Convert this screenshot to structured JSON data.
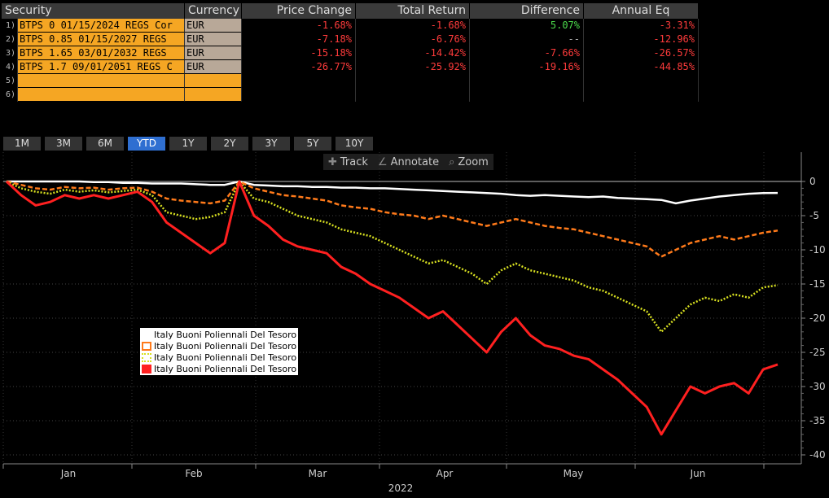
{
  "table": {
    "headers": {
      "security": "Security",
      "currency": "Currency",
      "price_change": "Price Change",
      "total_return": "Total Return",
      "difference": "Difference",
      "annual_eq": "Annual Eq"
    },
    "rows": [
      {
        "idx": "1)",
        "security": "BTPS 0 01/15/2024 REGS Cor",
        "currency": "EUR",
        "price_change": "-1.68%",
        "total_return": "-1.68%",
        "difference": "5.07%",
        "annual_eq": "-3.31%"
      },
      {
        "idx": "2)",
        "security": "BTPS 0.85 01/15/2027 REGS",
        "currency": "EUR",
        "price_change": "-7.18%",
        "total_return": "-6.76%",
        "difference": "--",
        "annual_eq": "-12.96%"
      },
      {
        "idx": "3)",
        "security": "BTPS 1.65 03/01/2032 REGS",
        "currency": "EUR",
        "price_change": "-15.18%",
        "total_return": "-14.42%",
        "difference": "-7.66%",
        "annual_eq": "-26.57%"
      },
      {
        "idx": "4)",
        "security": "BTPS 1.7 09/01/2051 REGS C",
        "currency": "EUR",
        "price_change": "-26.77%",
        "total_return": "-25.92%",
        "difference": "-19.16%",
        "annual_eq": "-44.85%"
      },
      {
        "idx": "5)",
        "security": "",
        "currency": "",
        "price_change": "",
        "total_return": "",
        "difference": "",
        "annual_eq": ""
      },
      {
        "idx": "6)",
        "security": "",
        "currency": "",
        "price_change": "",
        "total_return": "",
        "difference": "",
        "annual_eq": ""
      }
    ]
  },
  "tabs": [
    "1M",
    "3M",
    "6M",
    "YTD",
    "1Y",
    "2Y",
    "3Y",
    "5Y",
    "10Y"
  ],
  "active_tab": "YTD",
  "tools": {
    "track": "Track",
    "annotate": "Annotate",
    "zoom": "Zoom"
  },
  "chart_data": {
    "type": "line",
    "xlabel": "2022",
    "x_ticks": [
      "Jan",
      "Feb",
      "Mar",
      "Apr",
      "May",
      "Jun"
    ],
    "y_ticks": [
      0,
      -5,
      -10,
      -15,
      -20,
      -25,
      -30,
      -35,
      -40
    ],
    "ylim": [
      -40,
      2
    ],
    "grid": true,
    "legend_position": "middle-left",
    "series": [
      {
        "name": "Italy Buoni Poliennali Del Tesoro",
        "color": "#ffffff",
        "style": "solid",
        "values": [
          0,
          0,
          0,
          0,
          0,
          0,
          -0.1,
          -0.1,
          -0.2,
          -0.2,
          -0.3,
          -0.3,
          -0.3,
          -0.4,
          -0.5,
          -0.5,
          0,
          -0.5,
          -0.6,
          -0.7,
          -0.7,
          -0.8,
          -0.8,
          -0.9,
          -0.9,
          -1.0,
          -1.0,
          -1.1,
          -1.2,
          -1.3,
          -1.4,
          -1.5,
          -1.6,
          -1.7,
          -1.8,
          -2.0,
          -2.1,
          -2.0,
          -2.1,
          -2.2,
          -2.3,
          -2.2,
          -2.4,
          -2.5,
          -2.6,
          -2.7,
          -3.2,
          -2.8,
          -2.5,
          -2.2,
          -2.0,
          -1.8,
          -1.7,
          -1.68
        ]
      },
      {
        "name": "Italy Buoni Poliennali Del Tesoro",
        "color": "#ff7a1a",
        "style": "dashed",
        "values": [
          0,
          -0.5,
          -1,
          -1.2,
          -0.8,
          -1.0,
          -0.9,
          -1.2,
          -1.0,
          -0.9,
          -1.5,
          -2.5,
          -2.8,
          -3.0,
          -3.2,
          -2.8,
          0,
          -1.0,
          -1.5,
          -2.0,
          -2.2,
          -2.5,
          -2.8,
          -3.5,
          -3.8,
          -4.0,
          -4.5,
          -4.8,
          -5.0,
          -5.5,
          -5.0,
          -5.5,
          -6.0,
          -6.5,
          -6.0,
          -5.5,
          -6.0,
          -6.5,
          -6.8,
          -7.0,
          -7.5,
          -8.0,
          -8.5,
          -9.0,
          -9.5,
          -11.0,
          -10.0,
          -9.0,
          -8.5,
          -8.0,
          -8.5,
          -8.0,
          -7.5,
          -7.18
        ]
      },
      {
        "name": "Italy Buoni Poliennali Del Tesoro",
        "color": "#d8e020",
        "style": "dotted",
        "values": [
          0,
          -1,
          -1.5,
          -1.8,
          -1.2,
          -1.5,
          -1.3,
          -1.6,
          -1.4,
          -1.2,
          -2.0,
          -4.5,
          -5.0,
          -5.5,
          -5.2,
          -4.5,
          0,
          -2.5,
          -3.0,
          -4.0,
          -5.0,
          -5.5,
          -6.0,
          -7.0,
          -7.5,
          -8.0,
          -9.0,
          -10.0,
          -11.0,
          -12.0,
          -11.5,
          -12.5,
          -13.5,
          -15.0,
          -13.0,
          -12.0,
          -13.0,
          -13.5,
          -14.0,
          -14.5,
          -15.5,
          -16.0,
          -17.0,
          -18.0,
          -19.0,
          -22.0,
          -20.0,
          -18.0,
          -17.0,
          -17.5,
          -16.5,
          -17.0,
          -15.5,
          -15.18
        ]
      },
      {
        "name": "Italy Buoni Poliennali Del Tesoro",
        "color": "#ff2020",
        "style": "solid",
        "values": [
          0,
          -2,
          -3.5,
          -3.0,
          -2.0,
          -2.5,
          -2.0,
          -2.5,
          -2.0,
          -1.5,
          -3.0,
          -6.0,
          -7.5,
          -9.0,
          -10.5,
          -9.0,
          0,
          -5.0,
          -6.5,
          -8.5,
          -9.5,
          -10.0,
          -10.5,
          -12.5,
          -13.5,
          -15.0,
          -16.0,
          -17.0,
          -18.5,
          -20.0,
          -19.0,
          -21.0,
          -23.0,
          -25.0,
          -22.0,
          -20.0,
          -22.5,
          -24.0,
          -24.5,
          -25.5,
          -26.0,
          -27.5,
          -29.0,
          -31.0,
          -33.0,
          -37.0,
          -33.5,
          -30.0,
          -31.0,
          -30.0,
          -29.5,
          -31.0,
          -27.5,
          -26.77
        ]
      }
    ]
  }
}
